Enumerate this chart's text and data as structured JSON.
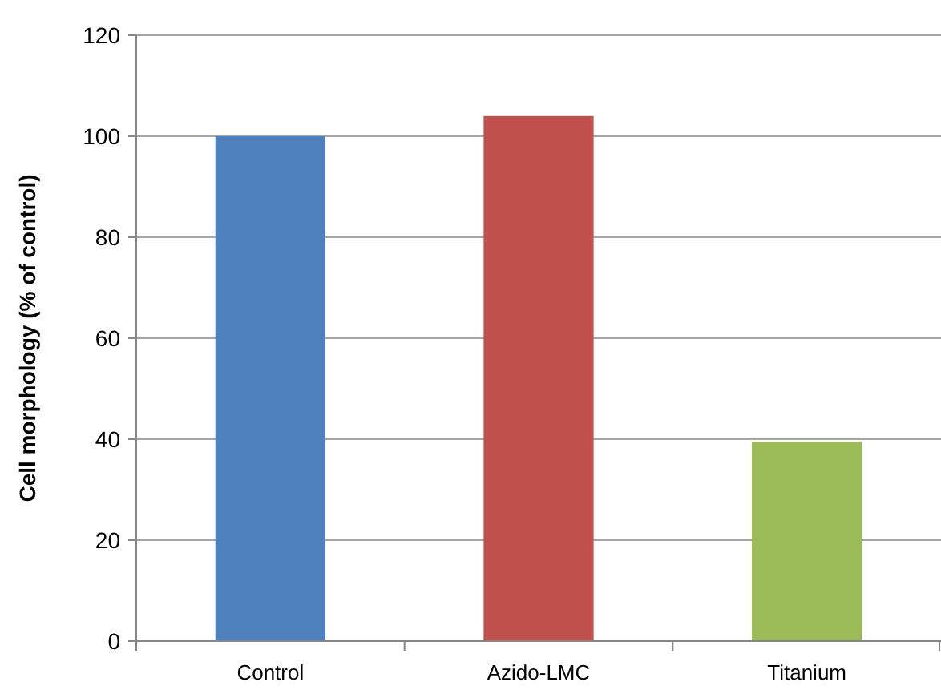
{
  "chart_data": {
    "type": "bar",
    "ylabel": "Cell morphology (% of control)",
    "categories": [
      "Control",
      "Azido-LMC",
      "Titanium"
    ],
    "values": [
      100,
      104,
      39.5
    ],
    "colors": [
      "#4f81bd",
      "#c0504d",
      "#9bbb59"
    ],
    "ylim": [
      0,
      120
    ],
    "yticks": [
      0,
      20,
      40,
      60,
      80,
      100,
      120
    ],
    "grid": "y"
  }
}
